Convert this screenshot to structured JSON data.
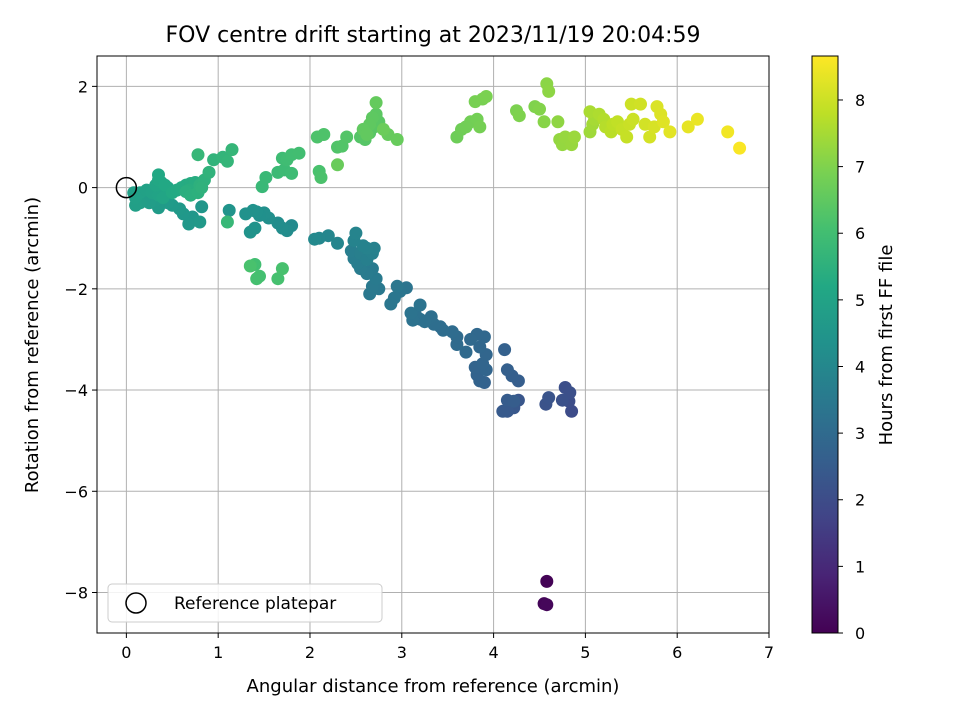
{
  "chart_data": {
    "type": "scatter",
    "title": "FOV centre drift starting at 2023/11/19 20:04:59",
    "xlabel": "Angular distance from reference (arcmin)",
    "ylabel": "Rotation from reference (arcmin)",
    "xlim": [
      -0.32,
      7.0
    ],
    "ylim": [
      -8.8,
      2.6
    ],
    "xticks": [
      0,
      1,
      2,
      3,
      4,
      5,
      6,
      7
    ],
    "yticks": [
      -8,
      -6,
      -4,
      -2,
      0,
      2
    ],
    "grid": true,
    "colormap": "viridis",
    "colorbar": {
      "label": "Hours from first FF file",
      "range": [
        0,
        8.66
      ],
      "ticks": [
        0,
        1,
        2,
        3,
        4,
        5,
        6,
        7,
        8
      ]
    },
    "legend": {
      "position": "bottom-left",
      "entries": [
        {
          "label": "Reference platepar",
          "marker": "open-circle"
        }
      ]
    },
    "reference_point": {
      "x": 0,
      "y": 0
    },
    "points": [
      [
        4.58,
        -7.78,
        0.05
      ],
      [
        4.55,
        -8.22,
        0.1
      ],
      [
        4.58,
        -8.24,
        0.15
      ],
      [
        4.85,
        -4.42,
        2.0
      ],
      [
        4.82,
        -4.22,
        2.05
      ],
      [
        4.78,
        -3.95,
        2.1
      ],
      [
        4.83,
        -4.05,
        2.12
      ],
      [
        4.75,
        -4.2,
        2.15
      ],
      [
        4.57,
        -4.28,
        2.2
      ],
      [
        4.6,
        -4.15,
        2.25
      ],
      [
        4.27,
        -4.2,
        2.3
      ],
      [
        4.22,
        -4.35,
        2.35
      ],
      [
        4.15,
        -4.42,
        2.4
      ],
      [
        4.1,
        -4.42,
        2.45
      ],
      [
        4.15,
        -4.2,
        2.5
      ],
      [
        4.22,
        -4.22,
        2.52
      ],
      [
        4.27,
        -3.82,
        2.55
      ],
      [
        4.2,
        -3.72,
        2.6
      ],
      [
        4.15,
        -3.6,
        2.62
      ],
      [
        4.12,
        -3.2,
        2.65
      ],
      [
        3.9,
        -3.85,
        2.7
      ],
      [
        3.85,
        -3.82,
        2.72
      ],
      [
        3.82,
        -3.7,
        2.75
      ],
      [
        3.8,
        -3.55,
        2.77
      ],
      [
        3.92,
        -3.6,
        2.8
      ],
      [
        3.88,
        -3.48,
        2.82
      ],
      [
        3.92,
        -3.3,
        2.85
      ],
      [
        3.85,
        -3.15,
        2.88
      ],
      [
        3.9,
        -2.95,
        2.9
      ],
      [
        3.82,
        -2.9,
        2.92
      ],
      [
        3.75,
        -3.0,
        2.95
      ],
      [
        3.7,
        -3.25,
        2.98
      ],
      [
        3.6,
        -3.1,
        3.0
      ],
      [
        3.6,
        -2.95,
        3.02
      ],
      [
        3.55,
        -2.85,
        3.05
      ],
      [
        3.45,
        -2.82,
        3.08
      ],
      [
        3.42,
        -2.75,
        3.1
      ],
      [
        3.35,
        -2.7,
        3.12
      ],
      [
        3.32,
        -2.55,
        3.15
      ],
      [
        3.25,
        -2.65,
        3.18
      ],
      [
        3.2,
        -2.6,
        3.2
      ],
      [
        3.15,
        -2.52,
        3.22
      ],
      [
        3.12,
        -2.62,
        3.25
      ],
      [
        3.1,
        -2.48,
        3.28
      ],
      [
        3.2,
        -2.32,
        3.3
      ],
      [
        3.05,
        -1.98,
        3.32
      ],
      [
        2.98,
        -2.05,
        3.35
      ],
      [
        2.92,
        -2.18,
        3.38
      ],
      [
        2.88,
        -2.3,
        3.4
      ],
      [
        2.95,
        -1.95,
        3.42
      ],
      [
        2.75,
        -2.0,
        3.45
      ],
      [
        2.65,
        -2.1,
        3.48
      ],
      [
        2.68,
        -1.95,
        3.5
      ],
      [
        2.72,
        -1.8,
        3.52
      ],
      [
        2.68,
        -1.6,
        3.55
      ],
      [
        2.62,
        -1.7,
        3.58
      ],
      [
        2.55,
        -1.6,
        3.6
      ],
      [
        2.52,
        -1.5,
        3.62
      ],
      [
        2.48,
        -1.4,
        3.65
      ],
      [
        2.45,
        -1.25,
        3.68
      ],
      [
        2.55,
        -1.3,
        3.7
      ],
      [
        2.62,
        -1.42,
        3.72
      ],
      [
        2.68,
        -1.3,
        3.75
      ],
      [
        2.7,
        -1.2,
        3.78
      ],
      [
        2.62,
        -1.2,
        3.8
      ],
      [
        2.58,
        -1.15,
        3.82
      ],
      [
        2.48,
        -1.05,
        3.85
      ],
      [
        2.5,
        -0.9,
        3.88
      ],
      [
        2.3,
        -1.1,
        3.9
      ],
      [
        2.2,
        -0.95,
        3.95
      ],
      [
        2.1,
        -1.0,
        4.0
      ],
      [
        2.05,
        -1.02,
        4.05
      ],
      [
        1.8,
        -0.75,
        4.1
      ],
      [
        1.75,
        -0.85,
        4.15
      ],
      [
        1.7,
        -0.8,
        4.18
      ],
      [
        1.65,
        -0.7,
        4.2
      ],
      [
        1.55,
        -0.6,
        4.25
      ],
      [
        1.5,
        -0.5,
        4.28
      ],
      [
        1.45,
        -0.55,
        4.3
      ],
      [
        1.42,
        -0.48,
        4.32
      ],
      [
        1.38,
        -0.45,
        4.35
      ],
      [
        1.3,
        -0.52,
        4.38
      ],
      [
        1.4,
        -0.8,
        4.4
      ],
      [
        1.35,
        -0.88,
        4.42
      ],
      [
        1.12,
        -0.45,
        4.45
      ],
      [
        0.82,
        -0.38,
        4.5
      ],
      [
        0.72,
        -0.58,
        4.55
      ],
      [
        0.68,
        -0.72,
        4.58
      ],
      [
        0.62,
        -0.52,
        4.6
      ],
      [
        0.8,
        -0.68,
        4.62
      ],
      [
        0.58,
        -0.42,
        4.65
      ],
      [
        0.5,
        -0.35,
        4.68
      ],
      [
        0.45,
        -0.3,
        4.7
      ],
      [
        0.35,
        -0.4,
        4.72
      ],
      [
        0.32,
        -0.25,
        4.75
      ],
      [
        0.25,
        -0.3,
        4.78
      ],
      [
        0.2,
        -0.2,
        4.8
      ],
      [
        0.15,
        -0.3,
        4.82
      ],
      [
        0.1,
        -0.35,
        4.85
      ],
      [
        0.1,
        -0.2,
        4.88
      ],
      [
        0.08,
        -0.1,
        4.9
      ],
      [
        0.15,
        -0.1,
        4.92
      ],
      [
        0.22,
        -0.05,
        4.95
      ],
      [
        0.28,
        -0.1,
        4.97
      ],
      [
        0.35,
        -0.15,
        5.0
      ],
      [
        0.4,
        -0.05,
        5.02
      ],
      [
        0.45,
        0.0,
        5.05
      ],
      [
        0.4,
        -0.2,
        5.08
      ],
      [
        0.32,
        0.05,
        5.1
      ],
      [
        0.38,
        0.1,
        5.12
      ],
      [
        0.35,
        0.15,
        5.15
      ],
      [
        0.35,
        0.25,
        5.18
      ],
      [
        0.42,
        0.05,
        5.2
      ],
      [
        0.5,
        -0.1,
        5.22
      ],
      [
        0.55,
        -0.05,
        5.25
      ],
      [
        0.6,
        0.0,
        5.28
      ],
      [
        0.65,
        0.05,
        5.3
      ],
      [
        0.7,
        0.08,
        5.32
      ],
      [
        0.75,
        0.1,
        5.35
      ],
      [
        0.72,
        -0.1,
        5.38
      ],
      [
        0.68,
        -0.05,
        5.4
      ],
      [
        0.65,
        -0.08,
        5.42
      ],
      [
        0.7,
        -0.15,
        5.45
      ],
      [
        0.78,
        -0.1,
        5.48
      ],
      [
        0.8,
        0.05,
        5.5
      ],
      [
        0.85,
        0.15,
        5.52
      ],
      [
        0.82,
        0.0,
        5.55
      ],
      [
        0.9,
        0.3,
        5.58
      ],
      [
        0.95,
        0.55,
        5.6
      ],
      [
        1.05,
        0.6,
        5.65
      ],
      [
        1.1,
        0.52,
        5.68
      ],
      [
        1.15,
        0.75,
        5.7
      ],
      [
        0.78,
        0.65,
        5.72
      ],
      [
        1.1,
        -0.68,
        5.75
      ],
      [
        1.48,
        0.02,
        5.78
      ],
      [
        1.52,
        0.2,
        5.8
      ],
      [
        1.65,
        0.3,
        5.85
      ],
      [
        1.72,
        0.35,
        5.88
      ],
      [
        1.8,
        0.28,
        5.9
      ],
      [
        1.7,
        0.58,
        5.92
      ],
      [
        1.75,
        0.55,
        5.95
      ],
      [
        1.8,
        0.65,
        5.98
      ],
      [
        1.88,
        0.68,
        6.0
      ],
      [
        1.4,
        -1.52,
        6.02
      ],
      [
        1.45,
        -1.75,
        6.05
      ],
      [
        1.42,
        -1.8,
        6.08
      ],
      [
        1.65,
        -1.8,
        6.1
      ],
      [
        1.7,
        -1.6,
        6.12
      ],
      [
        1.35,
        -1.55,
        6.14
      ],
      [
        2.1,
        0.32,
        6.15
      ],
      [
        2.12,
        0.2,
        6.18
      ],
      [
        2.08,
        1.0,
        6.2
      ],
      [
        2.15,
        1.05,
        6.22
      ],
      [
        2.3,
        0.8,
        6.25
      ],
      [
        2.35,
        0.82,
        6.28
      ],
      [
        2.4,
        1.0,
        6.3
      ],
      [
        2.55,
        1.0,
        6.32
      ],
      [
        2.6,
        0.95,
        6.35
      ],
      [
        2.65,
        1.08,
        6.38
      ],
      [
        2.7,
        1.2,
        6.4
      ],
      [
        2.75,
        1.3,
        6.42
      ],
      [
        2.72,
        1.45,
        6.45
      ],
      [
        2.68,
        1.38,
        6.48
      ],
      [
        2.65,
        1.25,
        6.5
      ],
      [
        2.58,
        1.15,
        6.52
      ],
      [
        2.62,
        1.05,
        6.55
      ],
      [
        2.72,
        1.68,
        6.58
      ],
      [
        2.85,
        1.05,
        6.6
      ],
      [
        2.95,
        0.95,
        6.62
      ],
      [
        2.3,
        0.45,
        6.65
      ],
      [
        2.8,
        1.15,
        6.68
      ],
      [
        3.6,
        1.0,
        6.72
      ],
      [
        3.65,
        1.15,
        6.75
      ],
      [
        3.7,
        1.2,
        6.78
      ],
      [
        3.75,
        1.3,
        6.8
      ],
      [
        3.82,
        1.35,
        6.82
      ],
      [
        3.85,
        1.2,
        6.85
      ],
      [
        3.8,
        1.7,
        6.88
      ],
      [
        3.88,
        1.75,
        6.9
      ],
      [
        3.92,
        1.8,
        6.92
      ],
      [
        4.25,
        1.52,
        6.95
      ],
      [
        4.28,
        1.42,
        6.98
      ],
      [
        4.45,
        1.6,
        7.0
      ],
      [
        4.5,
        1.55,
        7.05
      ],
      [
        4.55,
        1.3,
        7.1
      ],
      [
        4.58,
        2.05,
        7.15
      ],
      [
        4.6,
        1.9,
        7.18
      ],
      [
        4.7,
        1.3,
        7.2
      ],
      [
        4.72,
        0.95,
        7.25
      ],
      [
        4.75,
        0.85,
        7.28
      ],
      [
        4.78,
        1.0,
        7.3
      ],
      [
        4.85,
        0.85,
        7.32
      ],
      [
        4.88,
        1.0,
        7.35
      ],
      [
        5.05,
        1.1,
        7.4
      ],
      [
        5.08,
        1.25,
        7.45
      ],
      [
        5.1,
        1.35,
        7.5
      ],
      [
        5.05,
        1.5,
        7.55
      ],
      [
        5.15,
        1.45,
        7.6
      ],
      [
        5.2,
        1.35,
        7.65
      ],
      [
        5.22,
        1.2,
        7.7
      ],
      [
        5.28,
        1.1,
        7.75
      ],
      [
        5.3,
        1.25,
        7.8
      ],
      [
        5.35,
        1.3,
        7.85
      ],
      [
        5.4,
        1.15,
        7.9
      ],
      [
        5.45,
        1.0,
        7.92
      ],
      [
        5.48,
        1.25,
        7.95
      ],
      [
        5.52,
        1.35,
        7.98
      ],
      [
        5.5,
        1.65,
        8.0
      ],
      [
        5.6,
        1.65,
        8.05
      ],
      [
        5.65,
        1.25,
        8.08
      ],
      [
        5.7,
        1.0,
        8.1
      ],
      [
        5.75,
        1.2,
        8.15
      ],
      [
        5.78,
        1.6,
        8.18
      ],
      [
        5.82,
        1.45,
        8.22
      ],
      [
        5.85,
        1.3,
        8.25
      ],
      [
        5.92,
        1.1,
        8.3
      ],
      [
        6.12,
        1.2,
        8.35
      ],
      [
        6.22,
        1.35,
        8.4
      ],
      [
        6.55,
        1.1,
        8.5
      ],
      [
        6.68,
        0.78,
        8.6
      ]
    ]
  }
}
